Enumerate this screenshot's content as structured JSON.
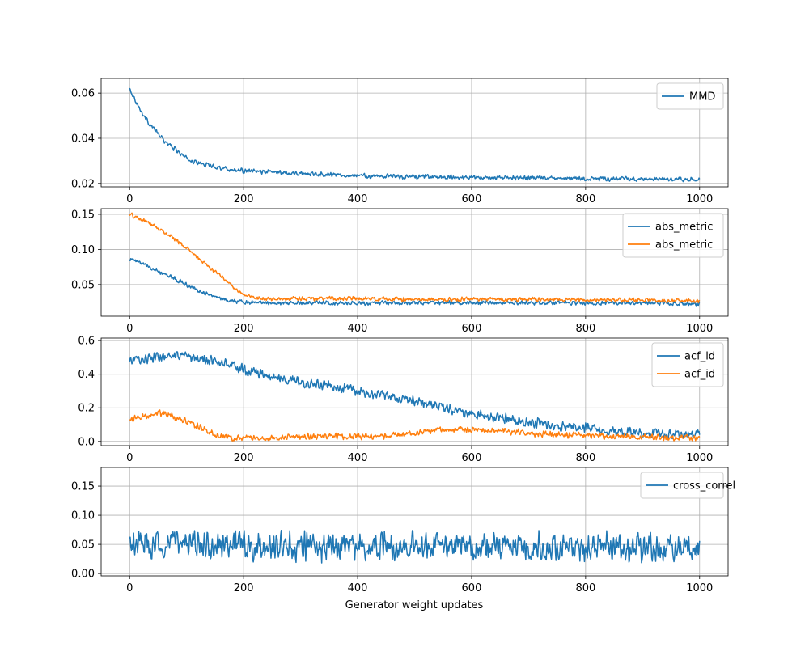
{
  "figure": {
    "xlabel": "Generator weight updates"
  },
  "chart_data": [
    {
      "type": "line",
      "grid": true,
      "legend_position": "top-right",
      "xlim": [
        -50,
        1050
      ],
      "ylim": [
        0.0185,
        0.0665
      ],
      "xticks": [
        0,
        200,
        400,
        600,
        800,
        1000
      ],
      "xtick_labels": [
        "0",
        "200",
        "400",
        "600",
        "800",
        "1000"
      ],
      "yticks": [
        0.02,
        0.04,
        0.06
      ],
      "ytick_labels": [
        "0.02",
        "0.04",
        "0.06"
      ],
      "series": [
        {
          "name": "MMD",
          "color": "#1f77b4",
          "x": [
            0,
            10,
            20,
            30,
            40,
            50,
            60,
            70,
            80,
            90,
            100,
            120,
            140,
            160,
            180,
            200,
            250,
            300,
            350,
            400,
            450,
            500,
            550,
            600,
            650,
            700,
            750,
            800,
            850,
            900,
            950,
            1000
          ],
          "values": [
            0.062,
            0.057,
            0.052,
            0.048,
            0.045,
            0.042,
            0.039,
            0.037,
            0.035,
            0.033,
            0.031,
            0.029,
            0.028,
            0.027,
            0.026,
            0.0255,
            0.025,
            0.0245,
            0.024,
            0.0235,
            0.0232,
            0.023,
            0.0228,
            0.0226,
            0.0225,
            0.0224,
            0.0222,
            0.0221,
            0.022,
            0.0219,
            0.0218,
            0.0215
          ],
          "noise": 0.0012
        }
      ]
    },
    {
      "type": "line",
      "grid": true,
      "legend_position": "top-right",
      "xlim": [
        -50,
        1050
      ],
      "ylim": [
        0.005,
        0.158
      ],
      "xticks": [
        0,
        200,
        400,
        600,
        800,
        1000
      ],
      "xtick_labels": [
        "0",
        "200",
        "400",
        "600",
        "800",
        "1000"
      ],
      "yticks": [
        0.05,
        0.1,
        0.15
      ],
      "ytick_labels": [
        "0.05",
        "0.10",
        "0.15"
      ],
      "series": [
        {
          "name": "abs_metric",
          "color": "#1f77b4",
          "x": [
            0,
            20,
            40,
            60,
            80,
            100,
            120,
            140,
            160,
            180,
            200,
            250,
            300,
            400,
            500,
            600,
            700,
            800,
            900,
            1000
          ],
          "values": [
            0.087,
            0.08,
            0.073,
            0.066,
            0.058,
            0.05,
            0.042,
            0.036,
            0.03,
            0.027,
            0.025,
            0.024,
            0.024,
            0.024,
            0.024,
            0.024,
            0.024,
            0.024,
            0.024,
            0.023
          ],
          "noise": 0.0035
        },
        {
          "name": "abs_metric",
          "color": "#ff7f0e",
          "x": [
            0,
            20,
            40,
            60,
            80,
            100,
            120,
            140,
            160,
            180,
            200,
            220,
            250,
            300,
            400,
            500,
            600,
            700,
            800,
            900,
            1000
          ],
          "values": [
            0.15,
            0.143,
            0.135,
            0.125,
            0.115,
            0.102,
            0.088,
            0.074,
            0.062,
            0.048,
            0.036,
            0.031,
            0.03,
            0.03,
            0.03,
            0.029,
            0.029,
            0.029,
            0.028,
            0.028,
            0.027
          ],
          "noise": 0.0035
        }
      ]
    },
    {
      "type": "line",
      "grid": true,
      "legend_position": "top-right",
      "xlim": [
        -50,
        1050
      ],
      "ylim": [
        -0.025,
        0.615
      ],
      "xticks": [
        0,
        200,
        400,
        600,
        800,
        1000
      ],
      "xtick_labels": [
        "0",
        "200",
        "400",
        "600",
        "800",
        "1000"
      ],
      "yticks": [
        0.0,
        0.2,
        0.4,
        0.6
      ],
      "ytick_labels": [
        "0.0",
        "0.2",
        "0.4",
        "0.6"
      ],
      "series": [
        {
          "name": "acf_id",
          "color": "#1f77b4",
          "x": [
            0,
            50,
            100,
            150,
            200,
            250,
            300,
            350,
            400,
            450,
            500,
            550,
            600,
            650,
            700,
            750,
            800,
            850,
            900,
            950,
            1000
          ],
          "values": [
            0.48,
            0.5,
            0.5,
            0.48,
            0.43,
            0.38,
            0.35,
            0.33,
            0.3,
            0.27,
            0.24,
            0.2,
            0.17,
            0.14,
            0.12,
            0.09,
            0.08,
            0.06,
            0.05,
            0.04,
            0.04
          ],
          "noise": 0.035
        },
        {
          "name": "acf_id",
          "color": "#ff7f0e",
          "x": [
            0,
            25,
            50,
            75,
            100,
            125,
            150,
            175,
            200,
            250,
            300,
            350,
            400,
            450,
            500,
            550,
            600,
            650,
            700,
            750,
            800,
            850,
            900,
            950,
            1000
          ],
          "values": [
            0.13,
            0.15,
            0.17,
            0.15,
            0.12,
            0.08,
            0.04,
            0.02,
            0.02,
            0.02,
            0.03,
            0.03,
            0.03,
            0.03,
            0.05,
            0.07,
            0.07,
            0.06,
            0.05,
            0.04,
            0.04,
            0.03,
            0.03,
            0.02,
            0.02
          ],
          "noise": 0.022
        }
      ]
    },
    {
      "type": "line",
      "grid": true,
      "legend_position": "top-right",
      "xlim": [
        -50,
        1050
      ],
      "ylim": [
        -0.004,
        0.182
      ],
      "xticks": [
        0,
        200,
        400,
        600,
        800,
        1000
      ],
      "xtick_labels": [
        "0",
        "200",
        "400",
        "600",
        "800",
        "1000"
      ],
      "yticks": [
        0.0,
        0.05,
        0.1,
        0.15
      ],
      "ytick_labels": [
        "0.00",
        "0.05",
        "0.10",
        "0.15"
      ],
      "series": [
        {
          "name": "cross_correl",
          "color": "#1f77b4",
          "x": [
            0,
            100,
            200,
            300,
            400,
            500,
            600,
            700,
            800,
            900,
            1000
          ],
          "values": [
            0.05,
            0.05,
            0.048,
            0.048,
            0.048,
            0.048,
            0.047,
            0.046,
            0.045,
            0.045,
            0.045
          ],
          "noise": 0.03
        }
      ]
    }
  ]
}
